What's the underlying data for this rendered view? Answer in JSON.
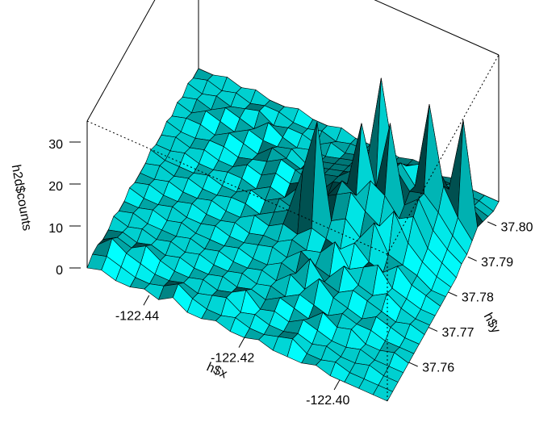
{
  "chart_data": {
    "type": "surface",
    "xlabel": "h$x",
    "ylabel": "h$y",
    "zlabel": "h2d$counts",
    "color": "#00ffff",
    "xlim": [
      -122.453,
      -122.39
    ],
    "ylim": [
      37.749,
      37.8057
    ],
    "zlim": [
      0,
      35
    ],
    "xticks": [
      -122.44,
      -122.42,
      {
        "value": -122.4,
        "label": "-122.40"
      }
    ],
    "yticks": [
      37.76,
      37.77,
      37.78,
      37.79,
      {
        "value": 37.8,
        "label": "37.80"
      }
    ],
    "zticks": [
      0,
      10,
      20,
      30
    ],
    "x": [
      -122.453,
      -122.45,
      -122.447,
      -122.444,
      -122.441,
      -122.438,
      -122.435,
      -122.432,
      -122.429,
      -122.426,
      -122.423,
      -122.42,
      -122.417,
      -122.414,
      -122.411,
      -122.408,
      -122.405,
      -122.402,
      -122.399,
      -122.396,
      -122.393,
      -122.39
    ],
    "y": [
      37.749,
      37.7517,
      37.7544,
      37.7571,
      37.7598,
      37.7625,
      37.7652,
      37.7679,
      37.7706,
      37.7733,
      37.776,
      37.7787,
      37.7814,
      37.7841,
      37.7868,
      37.7895,
      37.7922,
      37.7949,
      37.7976,
      37.8003,
      37.803,
      37.8057
    ],
    "z": [
      [
        0,
        1,
        0,
        0,
        1,
        0,
        2,
        0,
        0,
        1,
        0,
        0,
        1,
        0,
        0,
        0,
        1,
        0,
        0,
        0,
        0,
        0
      ],
      [
        1,
        2,
        1,
        0,
        0,
        1,
        3,
        1,
        0,
        0,
        1,
        0,
        0,
        1,
        2,
        0,
        0,
        1,
        0,
        0,
        0,
        0
      ],
      [
        1,
        4,
        2,
        1,
        0,
        0,
        1,
        0,
        1,
        2,
        0,
        1,
        0,
        0,
        1,
        0,
        1,
        0,
        0,
        1,
        0,
        0
      ],
      [
        0,
        2,
        1,
        3,
        1,
        0,
        0,
        1,
        0,
        1,
        3,
        0,
        1,
        0,
        2,
        1,
        0,
        0,
        1,
        0,
        0,
        0
      ],
      [
        0,
        1,
        0,
        1,
        0,
        1,
        0,
        0,
        1,
        0,
        1,
        0,
        2,
        1,
        0,
        3,
        1,
        2,
        0,
        0,
        1,
        0
      ],
      [
        1,
        0,
        1,
        0,
        1,
        0,
        1,
        0,
        0,
        1,
        0,
        1,
        0,
        2,
        1,
        0,
        2,
        1,
        1,
        0,
        0,
        0
      ],
      [
        0,
        1,
        0,
        0,
        0,
        1,
        0,
        1,
        0,
        0,
        1,
        0,
        3,
        1,
        5,
        2,
        1,
        0,
        2,
        1,
        0,
        0
      ],
      [
        0,
        0,
        1,
        0,
        1,
        0,
        0,
        0,
        1,
        0,
        0,
        2,
        1,
        6,
        2,
        1,
        3,
        2,
        1,
        0,
        1,
        0
      ],
      [
        1,
        0,
        0,
        1,
        0,
        0,
        1,
        0,
        0,
        1,
        2,
        1,
        4,
        2,
        1,
        5,
        2,
        1,
        3,
        1,
        0,
        0
      ],
      [
        0,
        1,
        0,
        0,
        1,
        0,
        0,
        1,
        0,
        1,
        1,
        3,
        2,
        3,
        7,
        2,
        4,
        6,
        2,
        1,
        0,
        0
      ],
      [
        0,
        0,
        1,
        0,
        0,
        1,
        0,
        0,
        2,
        1,
        3,
        2,
        5,
        4,
        3,
        6,
        3,
        2,
        5,
        2,
        1,
        0
      ],
      [
        0,
        1,
        0,
        1,
        0,
        0,
        1,
        1,
        0,
        2,
        4,
        15,
        28,
        6,
        8,
        5,
        10,
        4,
        3,
        2,
        0,
        0
      ],
      [
        1,
        0,
        0,
        0,
        1,
        0,
        0,
        2,
        1,
        3,
        2,
        6,
        8,
        10,
        12,
        9,
        7,
        12,
        6,
        3,
        1,
        0
      ],
      [
        0,
        0,
        1,
        0,
        0,
        1,
        1,
        0,
        2,
        1,
        5,
        4,
        6,
        11,
        9,
        14,
        12,
        8,
        10,
        4,
        2,
        0
      ],
      [
        0,
        1,
        0,
        1,
        0,
        0,
        2,
        1,
        3,
        2,
        4,
        3,
        7,
        8,
        24,
        10,
        27,
        9,
        12,
        6,
        3,
        1
      ],
      [
        1,
        0,
        0,
        1,
        1,
        0,
        1,
        2,
        4,
        3,
        2,
        5,
        6,
        9,
        12,
        34,
        14,
        10,
        11,
        8,
        4,
        1
      ],
      [
        0,
        1,
        1,
        0,
        2,
        1,
        0,
        3,
        2,
        1,
        3,
        4,
        5,
        6,
        8,
        11,
        13,
        9,
        30,
        12,
        6,
        2
      ],
      [
        1,
        0,
        2,
        1,
        0,
        2,
        1,
        1,
        2,
        0,
        2,
        3,
        4,
        5,
        7,
        9,
        10,
        12,
        14,
        9,
        27,
        3
      ],
      [
        0,
        1,
        0,
        2,
        1,
        0,
        3,
        1,
        0,
        1,
        1,
        2,
        3,
        4,
        5,
        6,
        8,
        9,
        7,
        6,
        5,
        2
      ],
      [
        1,
        0,
        1,
        0,
        1,
        2,
        0,
        1,
        1,
        0,
        2,
        1,
        2,
        3,
        4,
        3,
        5,
        6,
        4,
        3,
        2,
        1
      ],
      [
        0,
        1,
        0,
        1,
        0,
        1,
        1,
        0,
        0,
        1,
        0,
        1,
        1,
        2,
        1,
        2,
        3,
        2,
        2,
        1,
        1,
        0
      ],
      [
        0,
        0,
        1,
        0,
        1,
        0,
        0,
        1,
        0,
        0,
        1,
        0,
        0,
        1,
        0,
        1,
        1,
        0,
        1,
        0,
        0,
        0
      ]
    ]
  }
}
